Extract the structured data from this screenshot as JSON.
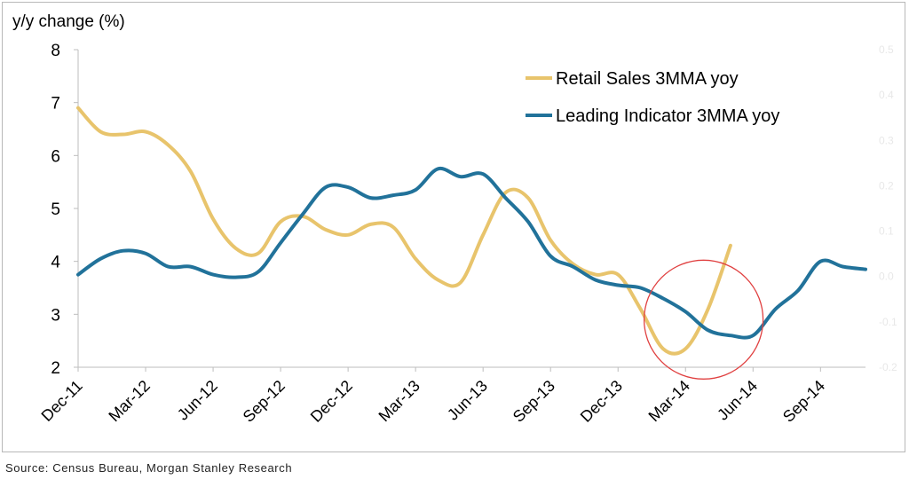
{
  "chart_data": {
    "type": "line",
    "ylabel": "y/y change (%)",
    "ylim": [
      2,
      8
    ],
    "yticks": [
      2,
      3,
      4,
      5,
      6,
      7,
      8
    ],
    "right_ticks": [
      "0.5",
      "0.4",
      "0.3",
      "0.2",
      "0.1",
      "0.0",
      "-0.1",
      "-0.2"
    ],
    "x_tick_labels": [
      "Dec-11",
      "Mar-12",
      "Jun-12",
      "Sep-12",
      "Dec-12",
      "Mar-13",
      "Jun-13",
      "Sep-13",
      "Dec-13",
      "Mar-14",
      "Jun-14",
      "Sep-14"
    ],
    "legend_position": "top-right",
    "series": [
      {
        "name": "Retail Sales 3MMA yoy",
        "color": "#e8c46c",
        "x": [
          "Dec-11",
          "Jan-12",
          "Feb-12",
          "Mar-12",
          "Apr-12",
          "May-12",
          "Jun-12",
          "Jul-12",
          "Aug-12",
          "Sep-12",
          "Oct-12",
          "Nov-12",
          "Dec-12",
          "Jan-13",
          "Feb-13",
          "Mar-13",
          "Apr-13",
          "May-13",
          "Jun-13",
          "Jul-13",
          "Aug-13",
          "Sep-13",
          "Oct-13",
          "Nov-13",
          "Dec-13",
          "Jan-14",
          "Feb-14",
          "Mar-14",
          "Apr-14",
          "May-14"
        ],
        "values": [
          6.9,
          6.45,
          6.4,
          6.45,
          6.2,
          5.7,
          4.8,
          4.25,
          4.15,
          4.75,
          4.85,
          4.6,
          4.5,
          4.7,
          4.65,
          4.05,
          3.65,
          3.6,
          4.5,
          5.3,
          5.2,
          4.4,
          3.95,
          3.75,
          3.75,
          3.1,
          2.35,
          2.35,
          3.1,
          4.3
        ]
      },
      {
        "name": "Leading Indicator 3MMA yoy",
        "color": "#21729a",
        "x": [
          "Dec-11",
          "Jan-12",
          "Feb-12",
          "Mar-12",
          "Apr-12",
          "May-12",
          "Jun-12",
          "Jul-12",
          "Aug-12",
          "Sep-12",
          "Oct-12",
          "Nov-12",
          "Dec-12",
          "Jan-13",
          "Feb-13",
          "Mar-13",
          "Apr-13",
          "May-13",
          "Jun-13",
          "Jul-13",
          "Aug-13",
          "Sep-13",
          "Oct-13",
          "Nov-13",
          "Dec-13",
          "Jan-14",
          "Feb-14",
          "Mar-14",
          "Apr-14",
          "May-14",
          "Jun-14",
          "Jul-14",
          "Aug-14",
          "Sep-14",
          "Oct-14",
          "Nov-14"
        ],
        "values": [
          3.75,
          4.05,
          4.2,
          4.15,
          3.9,
          3.9,
          3.75,
          3.7,
          3.8,
          4.35,
          4.9,
          5.4,
          5.4,
          5.2,
          5.25,
          5.35,
          5.75,
          5.6,
          5.65,
          5.2,
          4.75,
          4.1,
          3.9,
          3.65,
          3.55,
          3.5,
          3.3,
          3.05,
          2.7,
          2.6,
          2.6,
          3.1,
          3.45,
          4.0,
          3.9,
          3.85
        ]
      }
    ],
    "annotation": {
      "type": "circle",
      "color": "#e04040",
      "center_x": "Apr-14",
      "center_y": 2.9
    }
  },
  "source_note": "Source: Census Bureau, Morgan Stanley Research"
}
